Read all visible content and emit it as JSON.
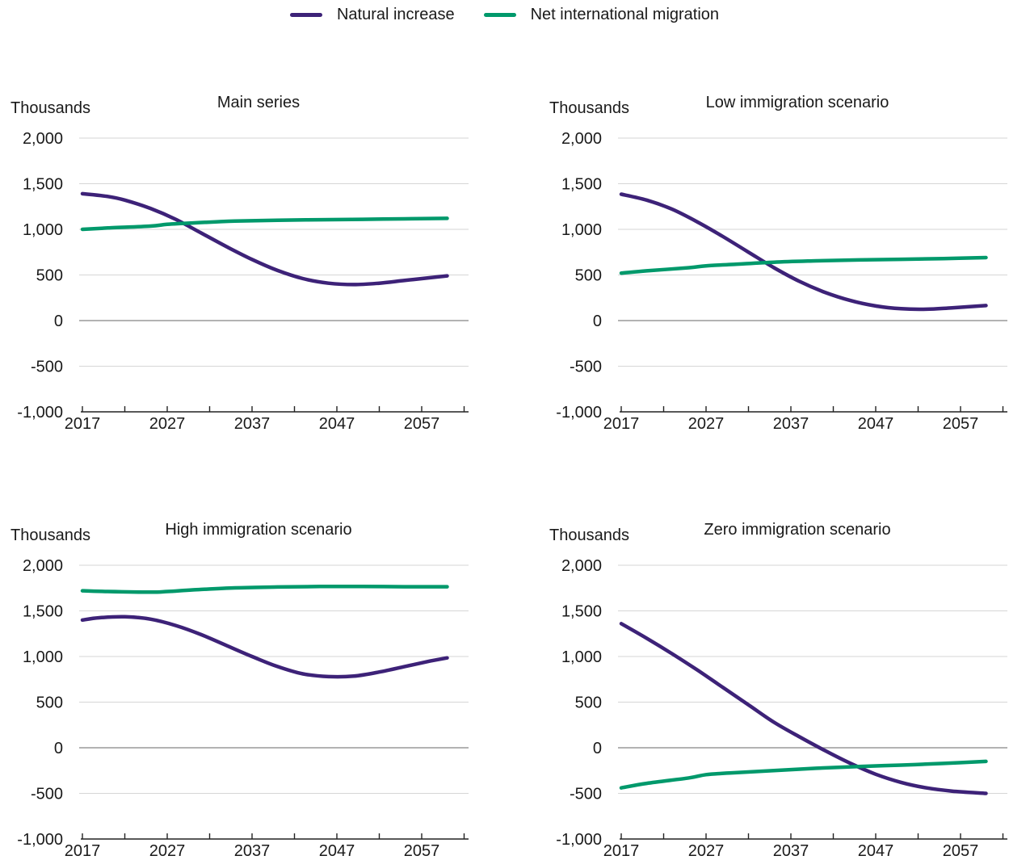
{
  "legend": {
    "items": [
      {
        "label": "Natural increase",
        "color": "#3d2278"
      },
      {
        "label": "Net international migration",
        "color": "#00996b"
      }
    ]
  },
  "chart_data": [
    {
      "type": "line",
      "title": "Main series",
      "ylabel": "Thousands",
      "xlabel": "",
      "ylim": [
        -1000,
        2000
      ],
      "yticks": [
        2000,
        1500,
        1000,
        500,
        0,
        -500,
        -1000
      ],
      "ytick_labels": [
        "2,000",
        "1,500",
        "1,000",
        "500",
        "0",
        "-500",
        "-1,000"
      ],
      "xlim": [
        2017,
        2063
      ],
      "xticks": [
        2017,
        2027,
        2037,
        2047,
        2057
      ],
      "grid": true,
      "series": [
        {
          "name": "Natural increase",
          "color": "#3d2278",
          "x": [
            2017,
            2020,
            2022,
            2025,
            2028,
            2031,
            2034,
            2037,
            2040,
            2043,
            2046,
            2049,
            2052,
            2055,
            2058,
            2060
          ],
          "y": [
            1390,
            1360,
            1320,
            1230,
            1110,
            960,
            810,
            670,
            550,
            460,
            410,
            395,
            410,
            440,
            470,
            490
          ]
        },
        {
          "name": "Net international migration",
          "color": "#00996b",
          "x": [
            2017,
            2020,
            2025,
            2027,
            2030,
            2035,
            2040,
            2045,
            2050,
            2055,
            2060
          ],
          "y": [
            1000,
            1015,
            1035,
            1055,
            1070,
            1090,
            1100,
            1105,
            1110,
            1115,
            1120
          ]
        }
      ]
    },
    {
      "type": "line",
      "title": "Low immigration scenario",
      "ylabel": "Thousands",
      "xlabel": "",
      "ylim": [
        -1000,
        2000
      ],
      "yticks": [
        2000,
        1500,
        1000,
        500,
        0,
        -500,
        -1000
      ],
      "ytick_labels": [
        "2,000",
        "1,500",
        "1,000",
        "500",
        "0",
        "-500",
        "-1,000"
      ],
      "xlim": [
        2017,
        2063
      ],
      "xticks": [
        2017,
        2027,
        2037,
        2047,
        2057
      ],
      "grid": true,
      "series": [
        {
          "name": "Natural increase",
          "color": "#3d2278",
          "x": [
            2017,
            2020,
            2023,
            2026,
            2029,
            2032,
            2035,
            2038,
            2041,
            2044,
            2047,
            2050,
            2053,
            2056,
            2060
          ],
          "y": [
            1385,
            1320,
            1220,
            1080,
            920,
            750,
            580,
            430,
            310,
            220,
            160,
            130,
            125,
            140,
            165
          ]
        },
        {
          "name": "Net international migration",
          "color": "#00996b",
          "x": [
            2017,
            2020,
            2025,
            2027,
            2030,
            2035,
            2040,
            2045,
            2050,
            2055,
            2060
          ],
          "y": [
            520,
            545,
            580,
            600,
            615,
            640,
            655,
            665,
            672,
            680,
            690
          ]
        }
      ]
    },
    {
      "type": "line",
      "title": "High immigration scenario",
      "ylabel": "Thousands",
      "xlabel": "",
      "ylim": [
        -1000,
        2000
      ],
      "yticks": [
        2000,
        1500,
        1000,
        500,
        0,
        -500,
        -1000
      ],
      "ytick_labels": [
        "2,000",
        "1,500",
        "1,000",
        "500",
        "0",
        "-500",
        "-1,000"
      ],
      "xlim": [
        2017,
        2063
      ],
      "xticks": [
        2017,
        2027,
        2037,
        2047,
        2057
      ],
      "grid": true,
      "series": [
        {
          "name": "Natural increase",
          "color": "#3d2278",
          "x": [
            2017,
            2019,
            2022,
            2025,
            2028,
            2031,
            2034,
            2037,
            2040,
            2043,
            2046,
            2049,
            2052,
            2055,
            2058,
            2060
          ],
          "y": [
            1400,
            1425,
            1435,
            1410,
            1340,
            1240,
            1120,
            1000,
            890,
            810,
            780,
            785,
            830,
            890,
            950,
            985
          ]
        },
        {
          "name": "Net international migration",
          "color": "#00996b",
          "x": [
            2017,
            2020,
            2025,
            2027,
            2030,
            2035,
            2040,
            2045,
            2050,
            2055,
            2060
          ],
          "y": [
            1720,
            1712,
            1705,
            1712,
            1730,
            1752,
            1762,
            1767,
            1768,
            1765,
            1765
          ]
        }
      ]
    },
    {
      "type": "line",
      "title": "Zero immigration scenario",
      "ylabel": "Thousands",
      "xlabel": "",
      "ylim": [
        -1000,
        2000
      ],
      "yticks": [
        2000,
        1500,
        1000,
        500,
        0,
        -500,
        -1000
      ],
      "ytick_labels": [
        "2,000",
        "1,500",
        "1,000",
        "500",
        "0",
        "-500",
        "-1,000"
      ],
      "xlim": [
        2017,
        2063
      ],
      "xticks": [
        2017,
        2027,
        2037,
        2047,
        2057
      ],
      "grid": true,
      "series": [
        {
          "name": "Natural increase",
          "color": "#3d2278",
          "x": [
            2017,
            2020,
            2023,
            2026,
            2029,
            2032,
            2035,
            2038,
            2041,
            2044,
            2047,
            2050,
            2053,
            2056,
            2060
          ],
          "y": [
            1360,
            1200,
            1030,
            850,
            660,
            470,
            280,
            120,
            -30,
            -170,
            -290,
            -380,
            -440,
            -475,
            -500
          ]
        },
        {
          "name": "Net international migration",
          "color": "#00996b",
          "x": [
            2017,
            2020,
            2025,
            2027,
            2030,
            2035,
            2040,
            2045,
            2050,
            2055,
            2060
          ],
          "y": [
            -440,
            -390,
            -330,
            -295,
            -275,
            -250,
            -225,
            -205,
            -190,
            -172,
            -150
          ]
        }
      ]
    }
  ]
}
